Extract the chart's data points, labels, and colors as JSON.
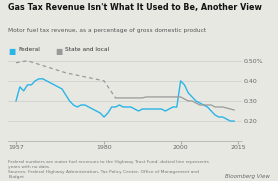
{
  "title": "Gas Tax Revenue Isn't What It Used to Be, Another View",
  "subtitle": "Motor fuel tax revenue, as a percentage of gross domestic product",
  "footnote": "Federal numbers are motor fuel revenues to the Highway Trust Fund; dotted line represents\nyears with no data.\nSources: Federal Highway Administration, Tax Policy Center, Office of Management and\nBudget",
  "branding": "Bloomberg View",
  "federal_color": "#29b5e8",
  "state_color": "#999999",
  "bg_color": "#e8e8e3",
  "ylim": [
    0.1,
    0.55
  ],
  "yticks": [
    0.2,
    0.3,
    0.4,
    0.5
  ],
  "ytick_labels": [
    "0.20",
    "0.30",
    "0.40",
    "0.50%"
  ],
  "xticks": [
    1957,
    1980,
    2000,
    2015
  ],
  "xlim": [
    1955,
    2016
  ],
  "federal_years": [
    1957,
    1958,
    1959,
    1960,
    1961,
    1962,
    1963,
    1964,
    1965,
    1966,
    1967,
    1968,
    1969,
    1970,
    1971,
    1972,
    1973,
    1974,
    1975,
    1976,
    1977,
    1978,
    1979,
    1980,
    1981,
    1982,
    1983,
    1984,
    1985,
    1986,
    1987,
    1988,
    1989,
    1990,
    1991,
    1992,
    1993,
    1994,
    1995,
    1996,
    1997,
    1998,
    1999,
    2000,
    2001,
    2002,
    2003,
    2004,
    2005,
    2006,
    2007,
    2008,
    2009,
    2010,
    2011,
    2012,
    2013,
    2014
  ],
  "federal_values": [
    0.3,
    0.37,
    0.35,
    0.38,
    0.38,
    0.4,
    0.41,
    0.41,
    0.4,
    0.39,
    0.38,
    0.37,
    0.36,
    0.33,
    0.3,
    0.28,
    0.27,
    0.28,
    0.28,
    0.27,
    0.26,
    0.25,
    0.24,
    0.22,
    0.24,
    0.27,
    0.27,
    0.28,
    0.27,
    0.27,
    0.27,
    0.26,
    0.25,
    0.26,
    0.26,
    0.26,
    0.26,
    0.26,
    0.26,
    0.25,
    0.26,
    0.27,
    0.27,
    0.4,
    0.38,
    0.34,
    0.32,
    0.3,
    0.29,
    0.28,
    0.27,
    0.25,
    0.23,
    0.22,
    0.22,
    0.21,
    0.2,
    0.2
  ],
  "state_solid_years": [
    1983,
    1984,
    1985,
    1986,
    1987,
    1988,
    1989,
    1990,
    1991,
    1992,
    1993,
    1994,
    1995,
    1996,
    1997,
    1998,
    1999,
    2000,
    2001,
    2002,
    2003,
    2004,
    2005,
    2006,
    2007,
    2008,
    2009,
    2010,
    2011,
    2012,
    2013,
    2014
  ],
  "state_solid_values": [
    0.315,
    0.315,
    0.315,
    0.315,
    0.315,
    0.315,
    0.315,
    0.315,
    0.32,
    0.32,
    0.32,
    0.32,
    0.32,
    0.32,
    0.32,
    0.32,
    0.32,
    0.32,
    0.31,
    0.3,
    0.3,
    0.29,
    0.28,
    0.28,
    0.28,
    0.28,
    0.27,
    0.27,
    0.27,
    0.265,
    0.26,
    0.255
  ],
  "state_dotted_years": [
    1957,
    1960,
    1965,
    1970,
    1975,
    1980,
    1983
  ],
  "state_dotted_values": [
    0.49,
    0.5,
    0.47,
    0.44,
    0.42,
    0.4,
    0.315
  ]
}
